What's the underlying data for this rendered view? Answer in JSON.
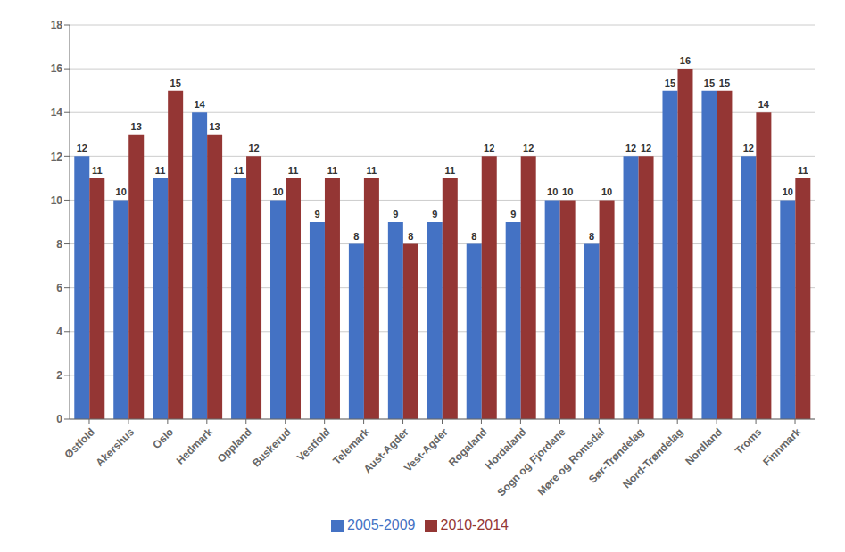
{
  "chart_data": {
    "type": "bar",
    "categories": [
      "Østfold",
      "Akershus",
      "Oslo",
      "Hedmark",
      "Oppland",
      "Buskerud",
      "Vestfold",
      "Telemark",
      "Aust-Agder",
      "Vest-Agder",
      "Rogaland",
      "Hordaland",
      "Sogn og Fjordane",
      "Møre og Romsdal",
      "Sør-Trøndelag",
      "Nord-Trøndelag",
      "Nordland",
      "Troms",
      "Finnmark"
    ],
    "series": [
      {
        "name": "2005-2009",
        "color": "#4472C4",
        "values": [
          12,
          10,
          11,
          14,
          11,
          10,
          9,
          8,
          9,
          9,
          8,
          9,
          10,
          8,
          12,
          15,
          15,
          12,
          10
        ]
      },
      {
        "name": "2010-2014",
        "color": "#943634",
        "values": [
          11,
          13,
          15,
          13,
          12,
          11,
          11,
          11,
          8,
          11,
          12,
          12,
          10,
          10,
          12,
          16,
          15,
          14,
          11
        ]
      }
    ],
    "ylim": [
      0,
      18
    ],
    "yticks": [
      0,
      2,
      4,
      6,
      8,
      10,
      12,
      14,
      16,
      18
    ],
    "grid": true,
    "data_labels": true,
    "legend": "bottom"
  }
}
